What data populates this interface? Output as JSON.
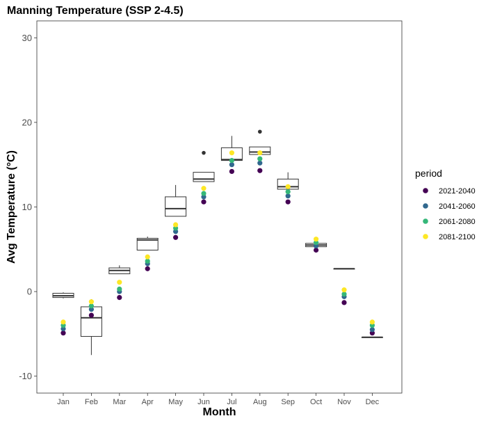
{
  "chart_data": {
    "type": "box",
    "title": "Manning Temperature (SSP 2-4.5)",
    "xlabel": "Month",
    "ylabel": "Avg Temperature (°C)",
    "ylim": [
      -12,
      32
    ],
    "yticks": [
      -10,
      0,
      10,
      20,
      30
    ],
    "grid": false,
    "categories": [
      "Jan",
      "Feb",
      "Mar",
      "Apr",
      "May",
      "Jun",
      "Jul",
      "Aug",
      "Sep",
      "Oct",
      "Nov",
      "Dec"
    ],
    "boxes": [
      {
        "category": "Jan",
        "min": -0.8,
        "q1": -0.7,
        "median": -0.5,
        "q3": -0.2,
        "max": -0.1,
        "outliers": []
      },
      {
        "category": "Feb",
        "min": -7.5,
        "q1": -5.3,
        "median": -3.1,
        "q3": -1.8,
        "max": -0.9,
        "outliers": []
      },
      {
        "category": "Mar",
        "min": 2.1,
        "q1": 2.1,
        "median": 2.5,
        "q3": 2.8,
        "max": 3.1,
        "outliers": []
      },
      {
        "category": "Apr",
        "min": 4.9,
        "q1": 4.9,
        "median": 6.1,
        "q3": 6.3,
        "max": 6.5,
        "outliers": []
      },
      {
        "category": "May",
        "min": 8.9,
        "q1": 8.9,
        "median": 9.8,
        "q3": 11.2,
        "max": 12.6,
        "outliers": []
      },
      {
        "category": "Jun",
        "min": 13.0,
        "q1": 13.0,
        "median": 13.3,
        "q3": 14.1,
        "max": 14.1,
        "outliers": [
          16.4
        ]
      },
      {
        "category": "Jul",
        "min": 15.5,
        "q1": 15.5,
        "median": 15.6,
        "q3": 17.0,
        "max": 18.4,
        "outliers": []
      },
      {
        "category": "Aug",
        "min": 16.2,
        "q1": 16.2,
        "median": 16.5,
        "q3": 17.1,
        "max": 17.1,
        "outliers": [
          18.9
        ]
      },
      {
        "category": "Sep",
        "min": 12.1,
        "q1": 12.1,
        "median": 12.4,
        "q3": 13.3,
        "max": 14.1,
        "outliers": []
      },
      {
        "category": "Oct",
        "min": 5.3,
        "q1": 5.3,
        "median": 5.5,
        "q3": 5.7,
        "max": 5.8,
        "outliers": []
      },
      {
        "category": "Nov",
        "min": 2.7,
        "q1": 2.7,
        "median": 2.7,
        "q3": 2.7,
        "max": 2.7,
        "outliers": []
      },
      {
        "category": "Dec",
        "min": -5.4,
        "q1": -5.4,
        "median": -5.4,
        "q3": -5.4,
        "max": -5.4,
        "outliers": []
      }
    ],
    "legend_title": "period",
    "legend_position": "right",
    "series": [
      {
        "name": "2021-2040",
        "color": "#440154",
        "values": [
          -4.9,
          -2.8,
          -0.7,
          2.7,
          6.4,
          10.6,
          14.2,
          14.3,
          10.6,
          4.9,
          -1.3,
          -4.9
        ]
      },
      {
        "name": "2041-2060",
        "color": "#31688e",
        "values": [
          -4.4,
          -2.1,
          0.0,
          3.3,
          7.1,
          11.2,
          15.0,
          15.2,
          11.3,
          5.4,
          -0.6,
          -4.5
        ]
      },
      {
        "name": "2061-2080",
        "color": "#35b779",
        "values": [
          -4.0,
          -1.7,
          0.3,
          3.6,
          7.5,
          11.6,
          15.5,
          15.7,
          11.8,
          5.8,
          -0.3,
          -4.0
        ]
      },
      {
        "name": "2081-2100",
        "color": "#fde725",
        "values": [
          -3.6,
          -1.2,
          1.1,
          4.1,
          7.9,
          12.2,
          16.4,
          16.4,
          12.4,
          6.2,
          0.2,
          -3.6
        ]
      }
    ]
  }
}
